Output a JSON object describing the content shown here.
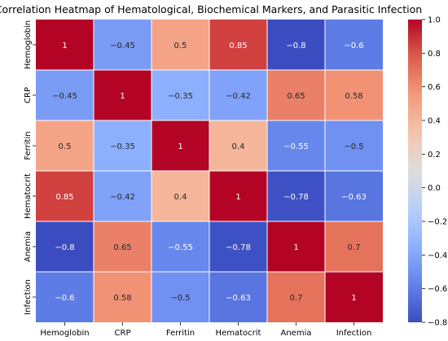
{
  "chart_data": {
    "type": "heatmap",
    "title": "Correlation Heatmap of Hematological, Biochemical Markers, and Parasitic Infection",
    "row_labels": [
      "Hemoglobin",
      "CRP",
      "Ferritin",
      "Hematocrit",
      "Anemia",
      "Infection"
    ],
    "col_labels": [
      "Hemoglobin",
      "CRP",
      "Ferritin",
      "Hematocrit",
      "Anemia",
      "Infection"
    ],
    "values": [
      [
        1,
        -0.45,
        0.5,
        0.85,
        -0.8,
        -0.6
      ],
      [
        -0.45,
        1,
        -0.35,
        -0.42,
        0.65,
        0.58
      ],
      [
        0.5,
        -0.35,
        1,
        0.4,
        -0.55,
        -0.5
      ],
      [
        0.85,
        -0.42,
        0.4,
        1,
        -0.78,
        -0.63
      ],
      [
        -0.8,
        0.65,
        -0.55,
        -0.78,
        1,
        0.7
      ],
      [
        -0.6,
        0.58,
        -0.5,
        -0.63,
        0.7,
        1
      ]
    ],
    "value_labels": [
      [
        "1",
        "−0.45",
        "0.5",
        "0.85",
        "−0.8",
        "−0.6"
      ],
      [
        "−0.45",
        "1",
        "−0.35",
        "−0.42",
        "0.65",
        "0.58"
      ],
      [
        "0.5",
        "−0.35",
        "1",
        "0.4",
        "−0.55",
        "−0.5"
      ],
      [
        "0.85",
        "−0.42",
        "0.4",
        "1",
        "−0.78",
        "−0.63"
      ],
      [
        "−0.8",
        "0.65",
        "−0.55",
        "−0.78",
        "1",
        "0.7"
      ],
      [
        "−0.6",
        "0.58",
        "−0.5",
        "−0.63",
        "0.7",
        "1"
      ]
    ],
    "colormap": "coolwarm",
    "vmin": -0.8,
    "vmax": 1.0,
    "colorbar_ticks": [
      1.0,
      0.8,
      0.6,
      0.4,
      0.2,
      0.0,
      -0.2,
      -0.4,
      -0.6,
      -0.8
    ],
    "colorbar_tick_labels": [
      "1.0",
      "0.8",
      "0.6",
      "0.4",
      "0.2",
      "0.0",
      "−0.2",
      "−0.4",
      "−0.6",
      "−0.8"
    ]
  }
}
